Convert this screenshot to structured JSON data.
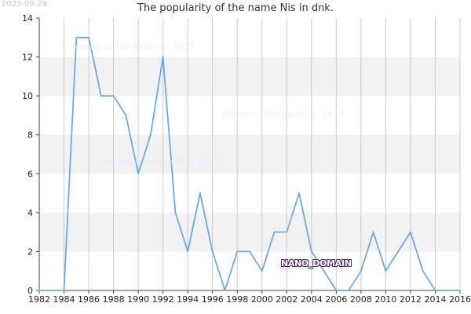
{
  "date_stamp": "2023-09-29",
  "watermark_text": "Names of the World © 2023",
  "domain_badge": "NANO_DOMAIN",
  "colors": {
    "line": "#6aaae8",
    "band": "#f2f2f2",
    "grid": "#cccccc",
    "axis": "#444444",
    "tick_text": "#222222"
  },
  "chart_data": {
    "type": "line",
    "title": "The popularity of the name Nis in dnk.",
    "xlabel": "",
    "ylabel": "",
    "xlim": [
      1982,
      2016
    ],
    "ylim": [
      0,
      14
    ],
    "x_ticks": [
      1982,
      1984,
      1986,
      1988,
      1990,
      1992,
      1994,
      1996,
      1998,
      2000,
      2002,
      2004,
      2006,
      2008,
      2010,
      2012,
      2014,
      2016
    ],
    "y_ticks": [
      0,
      2,
      4,
      6,
      8,
      10,
      12,
      14
    ],
    "grid": true,
    "legend": "none",
    "series": [
      {
        "x": [
          1982,
          1983,
          1984,
          1985,
          1986,
          1987,
          1988,
          1989,
          1990,
          1991,
          1992,
          1993,
          1994,
          1995,
          1996,
          1997,
          1998,
          1999,
          2000,
          2001,
          2002,
          2003,
          2004,
          2005,
          2006,
          2007,
          2008,
          2009,
          2010,
          2011,
          2012,
          2013,
          2014,
          2015,
          2016
        ],
        "values": [
          0,
          0,
          0,
          13,
          13,
          10,
          10,
          9,
          6,
          8,
          12,
          4,
          2,
          5,
          2,
          0,
          2,
          2,
          1,
          3,
          3,
          5,
          2,
          1,
          0,
          0,
          1,
          3,
          1,
          2,
          3,
          1,
          0,
          0,
          0
        ]
      }
    ]
  }
}
